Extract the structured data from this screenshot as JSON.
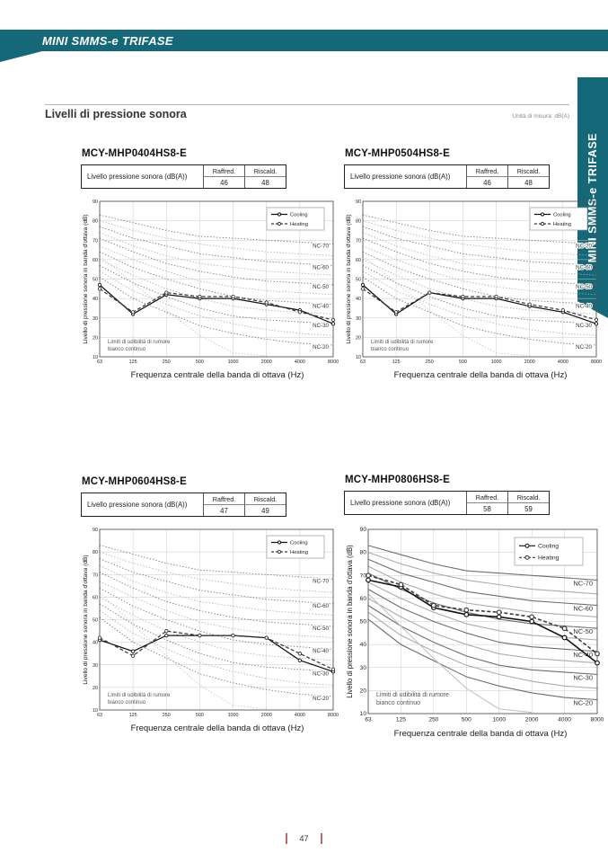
{
  "header": {
    "band_title": "MINI SMMS-e TRIFASE",
    "side_tab_title": "MINI SMMS-e TRIFASE"
  },
  "section": {
    "title": "Livelli di pressione sonora",
    "unit_note": "Unità di misura: dB(A)"
  },
  "table": {
    "row_label": "Livello pressione sonora (dB(A))",
    "cooling_header": "Raffred.",
    "heating_header": "Riscald."
  },
  "charts": [
    {
      "model": "MCY-MHP0404HS8-E",
      "raffred": "46",
      "riscald": "48"
    },
    {
      "model": "MCY-MHP0504HS8-E",
      "raffred": "46",
      "riscald": "48"
    },
    {
      "model": "MCY-MHP0604HS8-E",
      "raffred": "47",
      "riscald": "49"
    },
    {
      "model": "MCY-MHP0806HS8-E",
      "raffred": "58",
      "riscald": "59"
    }
  ],
  "footer": {
    "page_number": "47"
  },
  "colors": {
    "teal": "#156878",
    "footer_red": "#c4626a",
    "grid": "#c9c9c9",
    "nc_major": "#6e6e6e",
    "nc_minor": "#ababab",
    "threshold": "#c2c2c2",
    "cooling": "#111111",
    "heating": "#3a3a3a"
  },
  "nc_reference": {
    "NC-70": [
      83,
      79,
      75,
      72,
      71,
      70,
      69,
      68
    ],
    "NC-65": [
      80,
      75,
      71,
      68,
      66,
      64,
      63,
      62
    ],
    "NC-60": [
      77,
      71,
      67,
      63,
      61,
      59,
      58,
      57
    ],
    "NC-55": [
      74,
      67,
      62,
      58,
      56,
      54,
      53,
      52
    ],
    "NC-50": [
      71,
      64,
      58,
      54,
      51,
      49,
      48,
      47
    ],
    "NC-45": [
      67,
      60,
      54,
      49,
      46,
      44,
      43,
      42
    ],
    "NC-40": [
      64,
      56,
      50,
      45,
      41,
      39,
      38,
      37
    ],
    "NC-35": [
      60,
      52,
      45,
      40,
      36,
      34,
      33,
      32
    ],
    "NC-30": [
      57,
      48,
      41,
      35,
      31,
      29,
      28,
      27
    ],
    "NC-25": [
      54,
      44,
      37,
      31,
      27,
      24,
      22,
      21
    ],
    "NC-20": [
      51,
      40,
      33,
      26,
      22,
      19,
      17,
      16
    ],
    "threshold": [
      62,
      48,
      34,
      21,
      12,
      10.5
    ]
  },
  "chart_data": [
    {
      "type": "line",
      "model": "MCY-MHP0404HS8-E",
      "x": [
        63,
        125,
        250,
        500,
        1000,
        2000,
        4000,
        8000
      ],
      "xlabel": "Frequenza centrale della banda di ottava (Hz)",
      "ylabel": "Livello di pressione sonora in banda d'ottava (dB)",
      "ylim": [
        10,
        90
      ],
      "yticks": [
        10,
        20,
        30,
        40,
        50,
        60,
        70,
        80,
        90
      ],
      "series": [
        {
          "name": "Cooling",
          "values": [
            47,
            32,
            42,
            40,
            40,
            37,
            34,
            27
          ]
        },
        {
          "name": "Heating",
          "values": [
            45,
            33,
            43,
            41,
            41,
            38,
            33,
            29
          ]
        }
      ],
      "legend": [
        "Cooling",
        "Heating"
      ],
      "legend_position": "top-right",
      "nc_labels": [
        "NC-70",
        "NC-60",
        "NC-50",
        "NC-40",
        "NC-30",
        "NC-20"
      ],
      "note_lines": [
        "Limiti di udibilità di rumore",
        "bianco continuo"
      ]
    },
    {
      "type": "line",
      "model": "MCY-MHP0504HS8-E",
      "x": [
        63,
        125,
        250,
        500,
        1000,
        2000,
        4000,
        8000
      ],
      "xlabel": "Frequenza centrale della banda di ottava (Hz)",
      "ylabel": "Livello di pressione sonora in banda d'ottava (dB)",
      "ylim": [
        10,
        90
      ],
      "yticks": [
        10,
        20,
        30,
        40,
        50,
        60,
        70,
        80,
        90
      ],
      "series": [
        {
          "name": "Cooling",
          "values": [
            47,
            32,
            43,
            40,
            40,
            36,
            33,
            27
          ]
        },
        {
          "name": "Heating",
          "values": [
            45,
            33,
            43,
            41,
            41,
            37,
            34,
            29
          ]
        }
      ],
      "legend": [
        "Cooling",
        "Heating"
      ],
      "legend_position": "top-right",
      "nc_labels": [
        "NC-70",
        "NC-60",
        "NC-50",
        "NC-40",
        "NC-30",
        "NC-20"
      ],
      "note_lines": [
        "Limiti di udibilità di rumore",
        "bianco continuo"
      ]
    },
    {
      "type": "line",
      "model": "MCY-MHP0604HS8-E",
      "x": [
        63,
        125,
        250,
        500,
        1000,
        2000,
        4000,
        8000
      ],
      "xlabel": "Frequenza centrale della banda di ottava (Hz)",
      "ylabel": "Livello di pressione sonora in banda d'ottava (dB)",
      "ylim": [
        10,
        90
      ],
      "yticks": [
        10,
        20,
        30,
        40,
        50,
        60,
        70,
        80,
        90
      ],
      "series": [
        {
          "name": "Cooling",
          "values": [
            41,
            36,
            43,
            43,
            43,
            42,
            32,
            27
          ]
        },
        {
          "name": "Heating",
          "values": [
            42,
            34,
            45,
            43,
            43,
            42,
            35,
            28
          ]
        }
      ],
      "legend": [
        "Cooling",
        "Heating"
      ],
      "legend_position": "top-right",
      "nc_labels": [
        "NC-70",
        "NC-60",
        "NC-50",
        "NC-40",
        "NC-30",
        "NC-20"
      ],
      "note_lines": [
        "Limiti di udibilità di rumore",
        "bianco continuo"
      ]
    },
    {
      "type": "line",
      "model": "MCY-MHP0806HS8-E",
      "x": [
        63,
        125,
        250,
        500,
        1000,
        2000,
        4000,
        8000
      ],
      "xlabel": "Frequenza centrale della banda di ottava (Hz)",
      "ylabel": "Livello di pressione sonora in banda d'ottava (dB)",
      "ylim": [
        10,
        90
      ],
      "yticks": [
        10,
        20,
        30,
        40,
        50,
        60,
        70,
        80,
        90
      ],
      "series": [
        {
          "name": "Cooling",
          "values": [
            68,
            65,
            56,
            53,
            52,
            50,
            43,
            32
          ]
        },
        {
          "name": "Heating",
          "values": [
            70,
            66,
            57,
            55,
            54,
            52,
            47,
            36
          ]
        }
      ],
      "legend": [
        "Cooling",
        "Heating"
      ],
      "legend_position": "top-right",
      "nc_labels": [
        "NC-70",
        "NC-60",
        "NC-50",
        "NC-40",
        "NC-30",
        "NC-20"
      ],
      "note_lines": [
        "Limiti di udibilità di rumore",
        "bianco continuo"
      ]
    }
  ]
}
